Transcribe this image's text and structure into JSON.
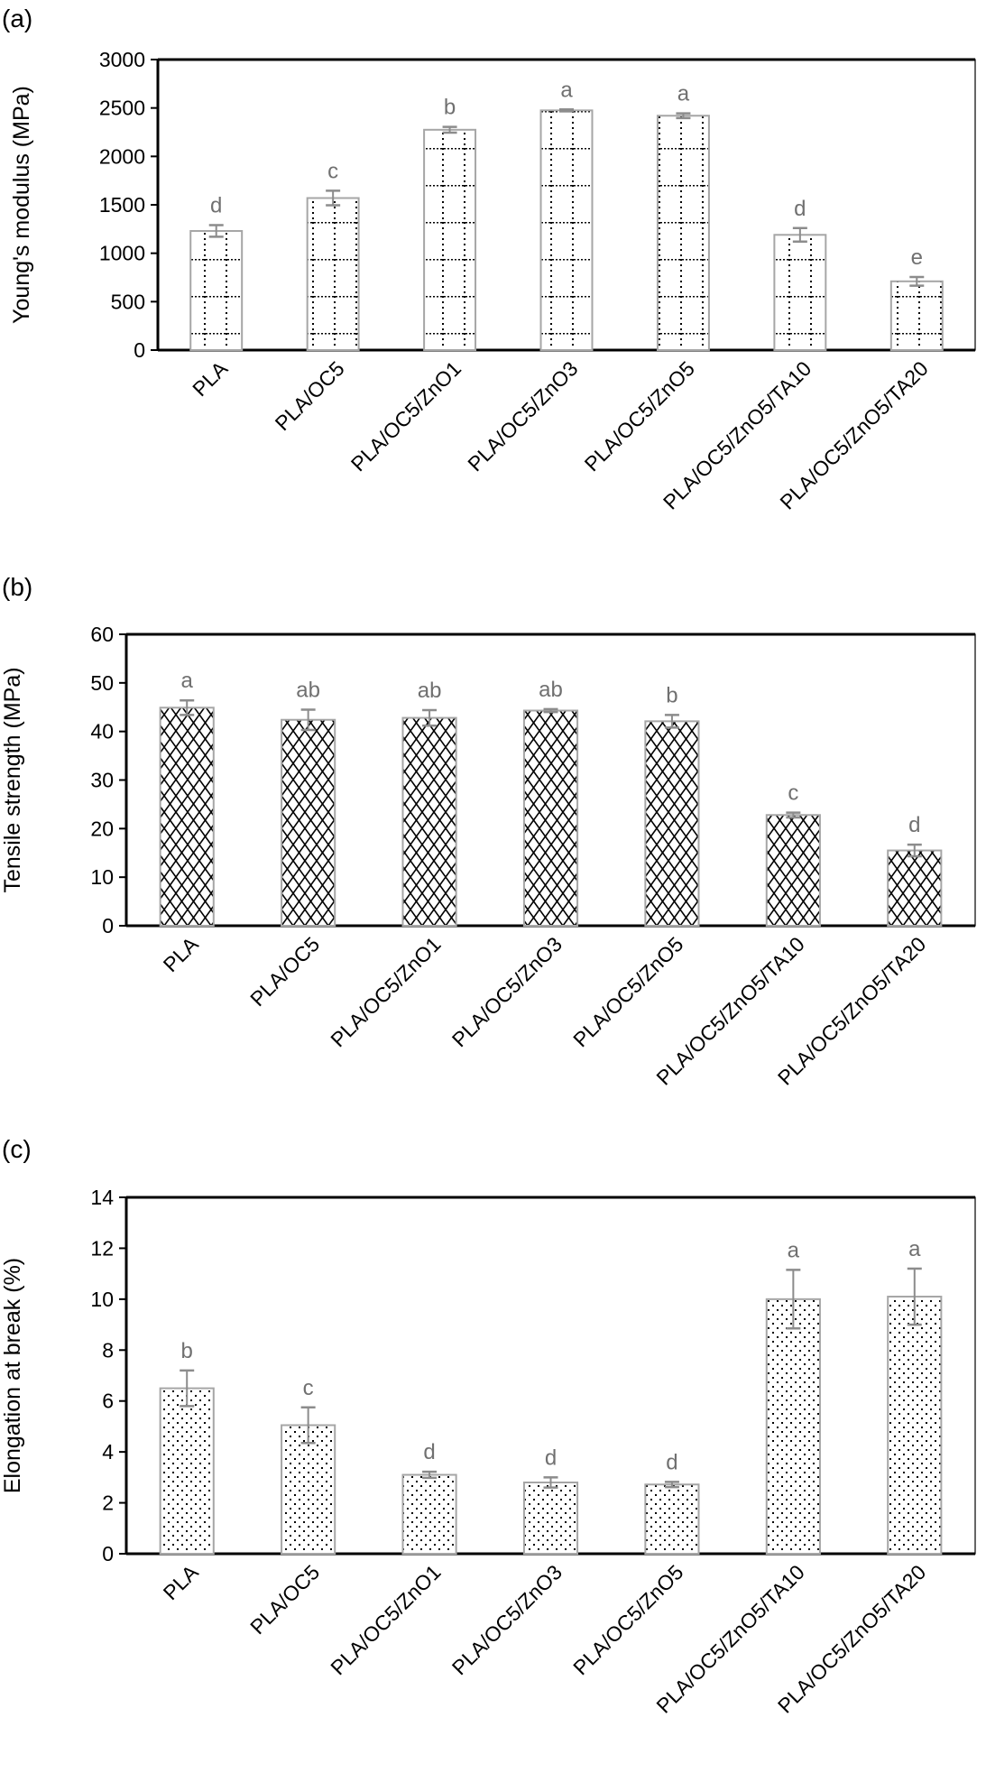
{
  "chart_data": [
    {
      "type": "bar",
      "panel_label": "(a)",
      "ylabel": "Young's modulus (MPa)",
      "ylim": [
        0,
        3000
      ],
      "yticks": [
        0,
        500,
        1000,
        1500,
        2000,
        2500,
        3000
      ],
      "categories": [
        "PLA",
        "PLA/OC5",
        "PLA/OC5/ZnO1",
        "PLA/OC5/ZnO3",
        "PLA/OC5/ZnO5",
        "PLA/OC5/ZnO5/TA10",
        "PLA/OC5/ZnO5/TA20"
      ],
      "values": [
        1230,
        1570,
        2275,
        2475,
        2420,
        1190,
        710
      ],
      "errors": [
        60,
        75,
        30,
        10,
        25,
        70,
        45
      ],
      "letters": [
        "d",
        "c",
        "b",
        "a",
        "a",
        "d",
        "e"
      ],
      "pattern": "dotted-grid",
      "grid": false
    },
    {
      "type": "bar",
      "panel_label": "(b)",
      "ylabel": "Tensile strength (MPa)",
      "ylim": [
        0,
        60
      ],
      "yticks": [
        0,
        10,
        20,
        30,
        40,
        50,
        60
      ],
      "categories": [
        "PLA",
        "PLA/OC5",
        "PLA/OC5/ZnO1",
        "PLA/OC5/ZnO3",
        "PLA/OC5/ZnO5",
        "PLA/OC5/ZnO5/TA10",
        "PLA/OC5/ZnO5/TA20"
      ],
      "values": [
        44.9,
        42.4,
        42.8,
        44.3,
        42.1,
        22.8,
        15.5
      ],
      "errors": [
        1.5,
        2.1,
        1.6,
        0.3,
        1.3,
        0.5,
        1.2
      ],
      "letters": [
        "a",
        "ab",
        "ab",
        "ab",
        "b",
        "c",
        "d"
      ],
      "pattern": "diamond-crosshatch",
      "grid": false
    },
    {
      "type": "bar",
      "panel_label": "(c)",
      "ylabel": "Elongation at break (%)",
      "ylim": [
        0,
        14
      ],
      "yticks": [
        0,
        2,
        4,
        6,
        8,
        10,
        12,
        14
      ],
      "categories": [
        "PLA",
        "PLA/OC5",
        "PLA/OC5/ZnO1",
        "PLA/OC5/ZnO3",
        "PLA/OC5/ZnO5",
        "PLA/OC5/ZnO5/TA10",
        "PLA/OC5/ZnO5/TA20"
      ],
      "values": [
        6.5,
        5.05,
        3.1,
        2.8,
        2.72,
        10.0,
        10.1
      ],
      "errors": [
        0.7,
        0.7,
        0.12,
        0.2,
        0.1,
        1.15,
        1.1
      ],
      "letters": [
        "b",
        "c",
        "d",
        "d",
        "d",
        "a",
        "a"
      ],
      "pattern": "dots",
      "grid": false
    }
  ],
  "colors": {
    "axis": "#000000",
    "bar_outline": "#a6a6a6",
    "error_bar": "#8c8c8c",
    "letters": "#707070",
    "pattern": "#000000"
  }
}
